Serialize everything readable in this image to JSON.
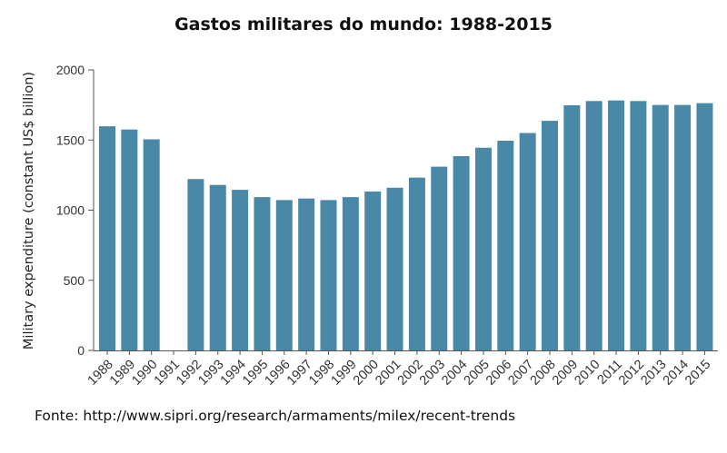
{
  "chart_data": {
    "type": "bar",
    "title": "Gastos militares do mundo: 1988-2015",
    "ylabel": "Military expenditure (constant US$ billion)",
    "xlabel": "",
    "ylim": [
      0,
      2000
    ],
    "yticks": [
      0,
      500,
      1000,
      1500,
      2000
    ],
    "grid": false,
    "legend": "none",
    "color": "#4a88a8",
    "categories": [
      "1988",
      "1989",
      "1990",
      "1991",
      "1992",
      "1993",
      "1994",
      "1995",
      "1996",
      "1997",
      "1998",
      "1999",
      "2000",
      "2001",
      "2002",
      "2003",
      "2004",
      "2005",
      "2006",
      "2007",
      "2008",
      "2009",
      "2010",
      "2011",
      "2012",
      "2013",
      "2014",
      "2015"
    ],
    "values": [
      1598,
      1575,
      1505,
      null,
      1222,
      1180,
      1145,
      1093,
      1072,
      1083,
      1072,
      1093,
      1133,
      1160,
      1232,
      1310,
      1385,
      1445,
      1495,
      1550,
      1637,
      1748,
      1778,
      1782,
      1778,
      1750,
      1750,
      1763
    ]
  },
  "source": "Fonte: http://www.sipri.org/research/armaments/milex/recent-trends"
}
